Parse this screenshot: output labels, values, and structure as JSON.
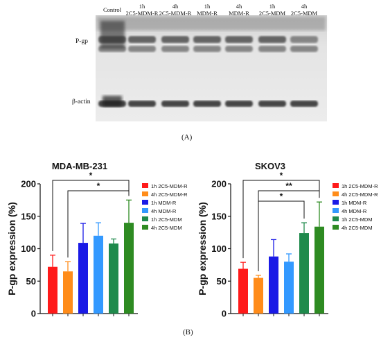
{
  "blot": {
    "lanes": [
      {
        "line1": "Control",
        "line2": ""
      },
      {
        "line1": "1h",
        "line2": "2C5-MDM-R"
      },
      {
        "line1": "4h",
        "line2": "2C5-MDM-R"
      },
      {
        "line1": "1h",
        "line2": "MDM-R"
      },
      {
        "line1": "4h",
        "line2": "MDM-R"
      },
      {
        "line1": "1h",
        "line2": "2C5-MDM"
      },
      {
        "line1": "4h",
        "line2": "2C5-MDM"
      }
    ],
    "row_labels": {
      "pgp": "P-gp",
      "actin": "β-actin"
    },
    "panel_label": "(A)"
  },
  "panel_b_label": "(B)",
  "series_colors": {
    "1h 2C5-MDM-R": "#ff1a1a",
    "4h 2C5-MDM-R": "#ff8c1a",
    "1h MDM-R": "#1a1ae6",
    "4h MDM-R": "#3399ff",
    "1h 2C5-MDM": "#1f8a4c",
    "4h 2C5-MDM": "#2e8b22"
  },
  "chart_data": [
    {
      "type": "bar",
      "title": "MDA-MB-231",
      "ylabel": "P-gp expression (%)",
      "ylim": [
        0,
        200
      ],
      "yticks": [
        0,
        50,
        100,
        150,
        200
      ],
      "categories": [
        "1h 2C5-MDM-R",
        "4h 2C5-MDM-R",
        "1h MDM-R",
        "4h MDM-R",
        "1h 2C5-MDM",
        "4h 2C5-MDM"
      ],
      "values": [
        72,
        65,
        109,
        120,
        108,
        140
      ],
      "errors": [
        18,
        15,
        30,
        20,
        7,
        35
      ],
      "significance": [
        {
          "from": 0,
          "to": 5,
          "label": "*"
        },
        {
          "from": 1,
          "to": 5,
          "label": "*"
        }
      ],
      "legend": [
        "1h 2C5-MDM-R",
        "4h 2C5-MDM-R",
        "1h MDM-R",
        "4h MDM-R",
        "1h 2C5-MDM",
        "4h 2C5-MDM"
      ],
      "legend_position": "right"
    },
    {
      "type": "bar",
      "title": "SKOV3",
      "ylabel": "P-gp expression (%)",
      "ylim": [
        0,
        200
      ],
      "yticks": [
        0,
        50,
        100,
        150,
        200
      ],
      "categories": [
        "1h 2C5-MDM-R",
        "4h 2C5-MDM-R",
        "1h MDM-R",
        "4h MDM-R",
        "1h 2C5-MDM",
        "4h 2C5-MDM"
      ],
      "values": [
        69,
        55,
        88,
        80,
        124,
        134
      ],
      "errors": [
        10,
        4,
        26,
        12,
        16,
        38
      ],
      "significance": [
        {
          "from": 0,
          "to": 5,
          "label": "*"
        },
        {
          "from": 1,
          "to": 5,
          "label": "**"
        },
        {
          "from": 1,
          "to": 4,
          "label": "*"
        }
      ],
      "legend": [
        "1h 2C5-MDM-R",
        "4h 2C5-MDM-R",
        "1h MDM-R",
        "4h MDM-R",
        "1h 2C5-MDM",
        "4h 2C5-MDM"
      ],
      "legend_position": "right"
    }
  ]
}
